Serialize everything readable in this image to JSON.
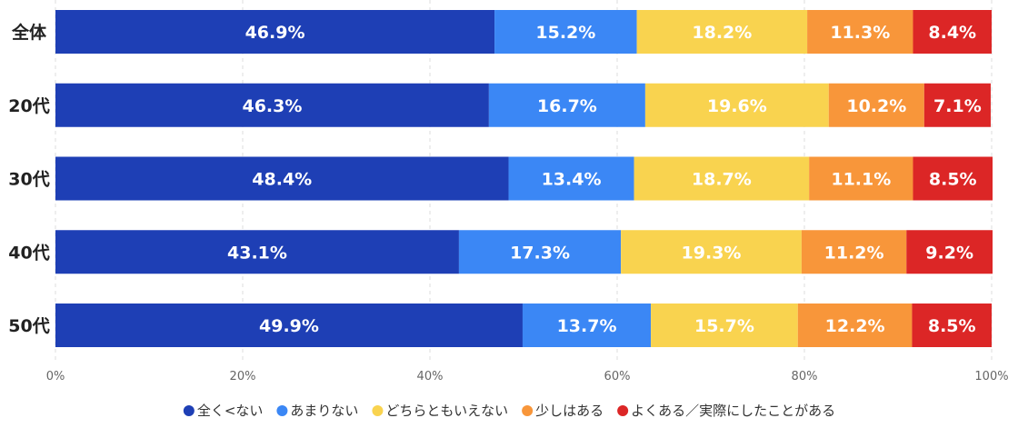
{
  "chart_data": {
    "type": "bar",
    "orientation": "horizontal",
    "stacked": true,
    "title": "",
    "xlabel": "",
    "ylabel": "",
    "xlim": [
      0,
      100
    ],
    "grid": true,
    "legend_position": "bottom",
    "categories": [
      "全体",
      "20代",
      "30代",
      "40代",
      "50代"
    ],
    "x_ticks": [
      "0%",
      "20%",
      "40%",
      "60%",
      "80%",
      "100%"
    ],
    "x_tick_values": [
      0,
      20,
      40,
      60,
      80,
      100
    ],
    "series": [
      {
        "name": "全く<ない",
        "color": "#1e3fb5",
        "values": [
          46.9,
          46.3,
          48.4,
          43.1,
          49.9
        ]
      },
      {
        "name": "あまりない",
        "color": "#3b87f5",
        "values": [
          15.2,
          16.7,
          13.4,
          17.3,
          13.7
        ]
      },
      {
        "name": "どちらともいえない",
        "color": "#f9d34f",
        "values": [
          18.2,
          19.6,
          18.7,
          19.3,
          15.7
        ]
      },
      {
        "name": "少しはある",
        "color": "#f8963a",
        "values": [
          11.3,
          10.2,
          11.1,
          11.2,
          12.2
        ]
      },
      {
        "name": "よくある／実際にしたことがある",
        "color": "#dc2626",
        "values": [
          8.4,
          7.1,
          8.5,
          9.2,
          8.5
        ]
      }
    ]
  }
}
